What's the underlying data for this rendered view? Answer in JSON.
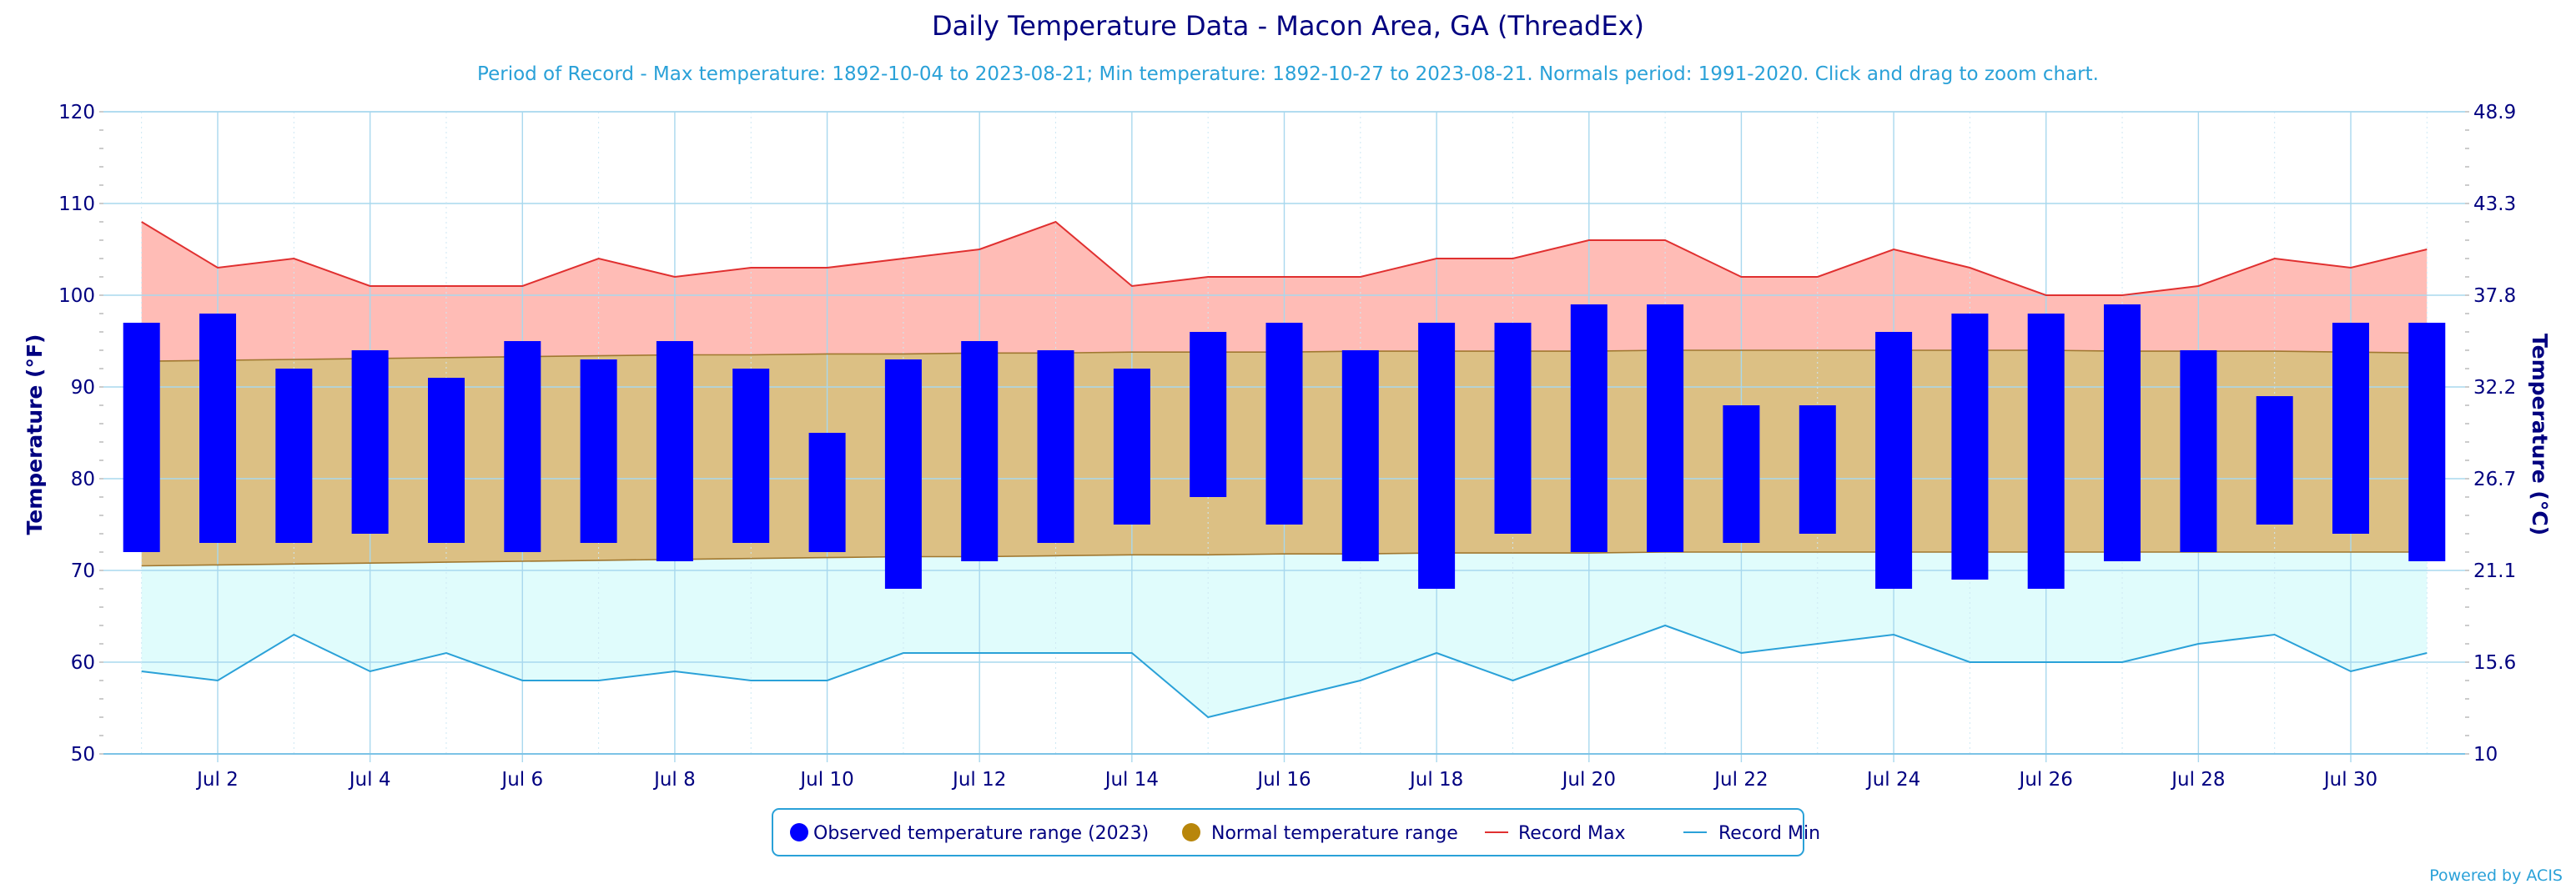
{
  "chart_data": {
    "type": "bar",
    "title": "Daily Temperature Data - Macon Area, GA (ThreadEx)",
    "subtitle": "Period of Record - Max temperature: 1892-10-04 to 2023-08-21; Min temperature: 1892-10-27 to 2023-08-21. Normals period: 1991-2020. Click and drag to zoom chart.",
    "ylabel": "Temperature (°F)",
    "ylabel_right": "Temperature (°C)",
    "ylim": [
      50,
      120
    ],
    "y_ticks": [
      "50",
      "60",
      "70",
      "80",
      "90",
      "100",
      "110",
      "120"
    ],
    "y_right_ticks": [
      "10",
      "15.6",
      "21.1",
      "26.7",
      "32.2",
      "37.8",
      "43.3",
      "48.9"
    ],
    "x_tick_labels": [
      "Jul 2",
      "Jul 4",
      "Jul 6",
      "Jul 8",
      "Jul 10",
      "Jul 12",
      "Jul 14",
      "Jul 16",
      "Jul 18",
      "Jul 20",
      "Jul 22",
      "Jul 24",
      "Jul 26",
      "Jul 28",
      "Jul 30"
    ],
    "days": [
      1,
      2,
      3,
      4,
      5,
      6,
      7,
      8,
      9,
      10,
      11,
      12,
      13,
      14,
      15,
      16,
      17,
      18,
      19,
      20,
      21,
      22,
      23,
      24,
      25,
      26,
      27,
      28,
      29,
      30,
      31
    ],
    "observed_max": [
      97,
      98,
      92,
      94,
      91,
      95,
      93,
      95,
      92,
      85,
      93,
      95,
      94,
      92,
      96,
      97,
      94,
      97,
      97,
      99,
      99,
      88,
      88,
      96,
      98,
      98,
      99,
      94,
      89,
      97,
      97
    ],
    "observed_min": [
      72,
      73,
      73,
      74,
      73,
      72,
      73,
      71,
      73,
      72,
      68,
      71,
      73,
      75,
      78,
      75,
      71,
      68,
      74,
      72,
      72,
      73,
      74,
      68,
      69,
      68,
      71,
      72,
      75,
      74,
      71
    ],
    "normal_max": [
      92.8,
      92.9,
      93.0,
      93.1,
      93.2,
      93.3,
      93.4,
      93.5,
      93.5,
      93.6,
      93.6,
      93.7,
      93.7,
      93.8,
      93.8,
      93.8,
      93.9,
      93.9,
      93.9,
      93.9,
      94.0,
      94.0,
      94.0,
      94.0,
      94.0,
      94.0,
      93.9,
      93.9,
      93.9,
      93.8,
      93.7
    ],
    "normal_min": [
      70.5,
      70.6,
      70.7,
      70.8,
      70.9,
      71.0,
      71.1,
      71.2,
      71.3,
      71.4,
      71.5,
      71.5,
      71.6,
      71.7,
      71.7,
      71.8,
      71.8,
      71.9,
      71.9,
      71.9,
      72.0,
      72.0,
      72.0,
      72.0,
      72.0,
      72.0,
      72.0,
      72.0,
      72.0,
      72.0,
      72.0
    ],
    "record_max": [
      108,
      103,
      104,
      101,
      101,
      101,
      104,
      102,
      103,
      103,
      104,
      105,
      108,
      101,
      102,
      102,
      102,
      104,
      104,
      106,
      106,
      102,
      102,
      105,
      103,
      100,
      100,
      101,
      104,
      103,
      105
    ],
    "record_min": [
      59,
      58,
      63,
      59,
      61,
      58,
      58,
      59,
      58,
      58,
      61,
      61,
      61,
      61,
      54,
      56,
      58,
      61,
      58,
      61,
      64,
      61,
      62,
      63,
      60,
      60,
      60,
      62,
      63,
      59,
      61
    ],
    "legend": [
      {
        "label": "Observed temperature range (2023)",
        "color": "#0000ff",
        "marker": "circle"
      },
      {
        "label": "Normal temperature range",
        "color": "#b8860b",
        "marker": "circle"
      },
      {
        "label": "Record Max",
        "color": "#e03030",
        "marker": "line"
      },
      {
        "label": "Record Min",
        "color": "#2aa1d8",
        "marker": "line"
      }
    ],
    "colors": {
      "observed": "#0000ff",
      "normal_fill": "#dcc084",
      "normal_edge": "#a07830",
      "record_max_line": "#e03030",
      "record_max_fill": "#ffbcb6",
      "record_min_line": "#2aa1d8",
      "record_min_fill": "#e0fcfc",
      "grid": "#a8d8ee"
    },
    "grid": true,
    "legend_position": "bottom-center"
  },
  "credit": "Powered by ACIS"
}
